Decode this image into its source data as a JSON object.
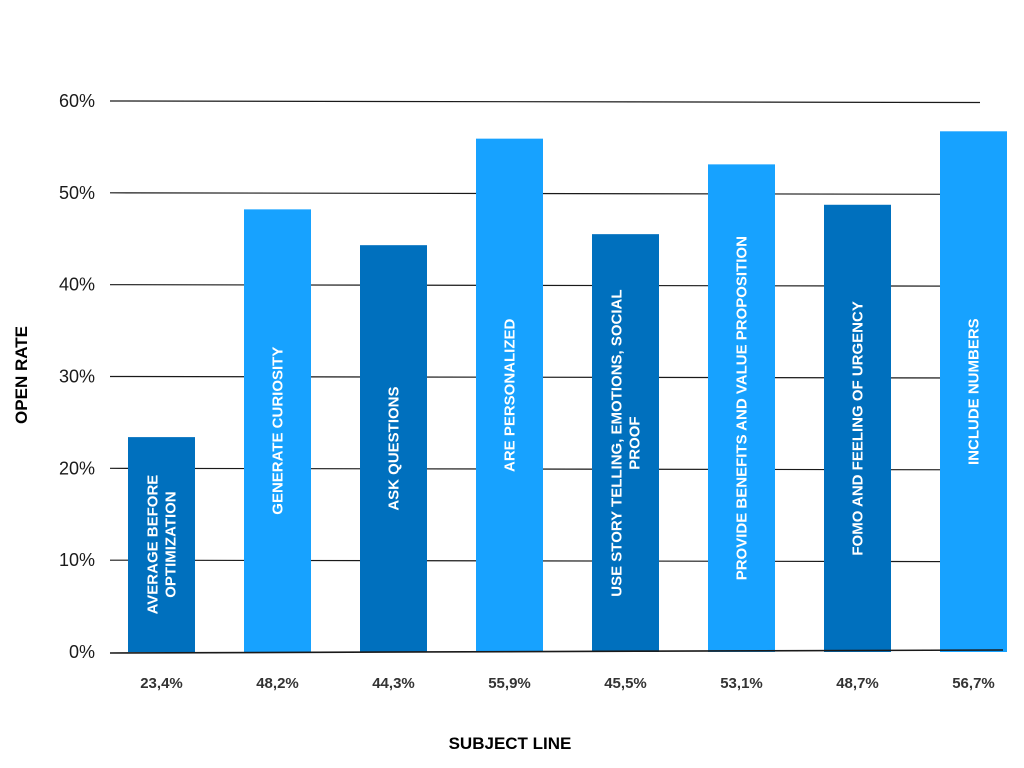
{
  "chart_data": {
    "type": "bar",
    "orientation": "vertical",
    "title": "",
    "xlabel": "SUBJECT LINE",
    "ylabel": "OPEN RATE",
    "ylim": [
      0,
      60
    ],
    "yticks": [
      {
        "value": 0,
        "label": "0%"
      },
      {
        "value": 10,
        "label": "10%"
      },
      {
        "value": 20,
        "label": "20%"
      },
      {
        "value": 30,
        "label": "30%"
      },
      {
        "value": 40,
        "label": "40%"
      },
      {
        "value": 50,
        "label": "50%"
      },
      {
        "value": 60,
        "label": "60%"
      }
    ],
    "grid": true,
    "legend": "none",
    "categories": [
      [
        "AVERAGE BEFORE",
        "OPTIMIZATION"
      ],
      [
        "GENERATE CURIOSITY"
      ],
      [
        "ASK QUESTIONS"
      ],
      [
        "ARE PERSONALIZED"
      ],
      [
        "USE STORY TELLING, EMOTIONS, SOCIAL",
        "PROOF"
      ],
      [
        "PROVIDE BENEFITS AND VALUE PROPOSITION"
      ],
      [
        "FOMO AND FEELING OF URGENCY"
      ],
      [
        "INCLUDE NUMBERS"
      ]
    ],
    "values": [
      23.4,
      48.2,
      44.3,
      55.9,
      45.5,
      53.1,
      48.7,
      56.7
    ],
    "value_labels": [
      "23,4%",
      "48,2%",
      "44,3%",
      "55,9%",
      "45,5%",
      "53,1%",
      "48,7%",
      "56,7%"
    ],
    "colors": {
      "dark": "#0070BE",
      "light": "#17A2FF",
      "bars": [
        "dark",
        "light",
        "dark",
        "light",
        "dark",
        "light",
        "dark",
        "light"
      ],
      "grid": "#1a1a1a"
    }
  }
}
